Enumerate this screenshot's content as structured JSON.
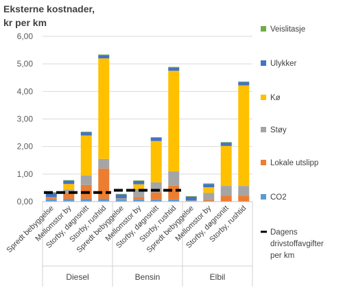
{
  "chart_data": {
    "type": "bar",
    "stacked": true,
    "title_lines": [
      "Eksterne kostnader,",
      "kr per km"
    ],
    "xlabel": "",
    "ylabel": "",
    "ylim": [
      0,
      6
    ],
    "yticks": [
      "0,00",
      "1,00",
      "2,00",
      "3,00",
      "4,00",
      "5,00",
      "6,00"
    ],
    "grid": true,
    "legend_position": "right",
    "groups": [
      {
        "name": "Diesel",
        "categories": [
          "Spredt bebyggelse",
          "Mellomstor by",
          "Storby, døgnsnitt",
          "Storby, rushtid"
        ],
        "fuel_tax": 0.33
      },
      {
        "name": "Bensin",
        "categories": [
          "Spredt bebyggelse",
          "Mellomstor by",
          "Storby, døgnsnitt",
          "Storby, rushtid"
        ],
        "fuel_tax": 0.41
      },
      {
        "name": "Elbil",
        "categories": [
          "Spredt bebyggelse",
          "Mellomstor by",
          "Storby, døgnsnitt",
          "Storby, rushtid"
        ],
        "fuel_tax": null
      }
    ],
    "series": [
      {
        "name": "CO2",
        "color": "#5B9BD5",
        "values": [
          0.08,
          0.1,
          0.1,
          0.1,
          0.07,
          0.08,
          0.08,
          0.08,
          0.0,
          0.0,
          0.0,
          0.0
        ]
      },
      {
        "name": "Lokale utslipp",
        "color": "#ED7D31",
        "values": [
          0.06,
          0.22,
          0.5,
          1.1,
          0.03,
          0.08,
          0.25,
          0.5,
          0.02,
          0.05,
          0.22,
          0.22
        ]
      },
      {
        "name": "Støy",
        "color": "#A5A5A5",
        "values": [
          0.02,
          0.12,
          0.35,
          0.35,
          0.02,
          0.3,
          0.37,
          0.52,
          0.02,
          0.27,
          0.35,
          0.35
        ]
      },
      {
        "name": "Kø",
        "color": "#FFC000",
        "values": [
          0.0,
          0.2,
          1.45,
          3.65,
          0.0,
          0.17,
          1.5,
          3.65,
          0.0,
          0.2,
          1.45,
          3.65
        ]
      },
      {
        "name": "Ulykker",
        "color": "#4472C4",
        "values": [
          0.16,
          0.12,
          0.12,
          0.12,
          0.14,
          0.12,
          0.12,
          0.12,
          0.14,
          0.12,
          0.12,
          0.12
        ]
      },
      {
        "name": "Veislitasje",
        "color": "#70AD47",
        "values": [
          0.02,
          0.02,
          0.02,
          0.02,
          0.02,
          0.02,
          0.02,
          0.02,
          0.02,
          0.02,
          0.02,
          0.02
        ]
      }
    ],
    "fuel_tax_line": {
      "name": "Dagens drivstoffavgifter per km",
      "name_lines": [
        "Dagens",
        "drivstoffavgifter",
        "per km"
      ],
      "color": "#000000"
    },
    "legend_order": [
      "Veislitasje",
      "Ulykker",
      "Kø",
      "Støy",
      "Lokale utslipp",
      "CO2",
      "Dagens drivstoffavgifter per km"
    ]
  }
}
